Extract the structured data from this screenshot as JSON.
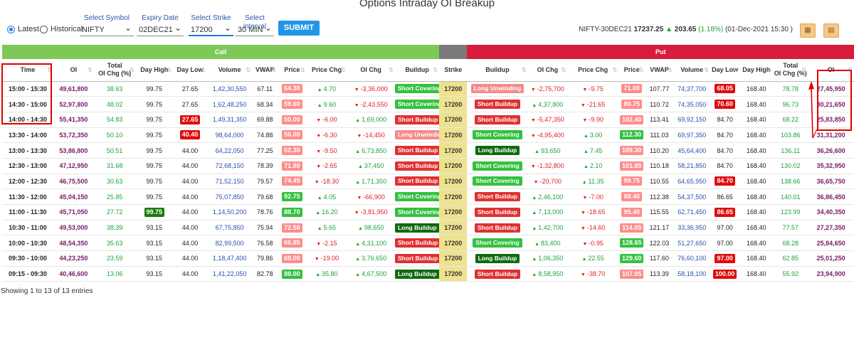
{
  "title": "Options Intraday OI Breakup",
  "controls": {
    "latest_label": "Latest",
    "historical_label": "Historical",
    "symbol_label": "Select Symbol",
    "symbol_value": "NIFTY",
    "expiry_label": "Expiry Date",
    "expiry_value": "02DEC21",
    "strike_label": "Select Strike",
    "strike_value": "17200",
    "interval_label": "Select interval",
    "interval_value": "30 MIN",
    "submit_label": "SUBMIT"
  },
  "info": {
    "contract": "NIFTY-30DEC21",
    "price": "17237.25",
    "change": "203.65",
    "change_pct": "(1.18%)",
    "timestamp": "(01-Dec-2021 15:30 )"
  },
  "icons": [
    "excel-icon",
    "pdf-icon"
  ],
  "colors": {
    "call_band": "#7dc857",
    "put_band": "#d91c3e",
    "strike_col": "#efe28f",
    "accent": "#2196e8"
  },
  "bands": {
    "call": "Call",
    "put": "Put"
  },
  "headers": {
    "time": "Time",
    "oi": "OI",
    "total_oi_chg": [
      "Total",
      "OI Chg (%)"
    ],
    "day_high": "Day High",
    "day_low": "Day Low",
    "volume": "Volume",
    "vwap": "VWAP",
    "price": "Price",
    "price_chg": "Price Chg",
    "oi_chg": "OI Chg",
    "buildup": "Buildup",
    "strike": "Strike"
  },
  "rows": [
    {
      "time": "15:00 - 15:30",
      "c_oi": "49,61,800",
      "c_toc": "38.63",
      "c_dh": "99.75",
      "c_dl": "27.65",
      "c_dl_s": "",
      "c_vol": "1,42,30,550",
      "c_vwap": "67.11",
      "c_price": "64.30",
      "c_price_s": "r",
      "c_pchg": "4.70",
      "c_pchg_d": "up",
      "c_oichg": "-3,36,000",
      "c_oichg_d": "dn",
      "c_bu": "Short Covering",
      "c_bu_s": "sc",
      "strike": "17200",
      "p_bu": "Long Unwinding",
      "p_bu_s": "lu",
      "p_oichg": "-2,75,700",
      "p_oichg_d": "dn",
      "p_pchg": "-9.75",
      "p_pchg_d": "dn",
      "p_price": "71.00",
      "p_price_s": "r",
      "p_vwap": "107.77",
      "p_vol": "74,37,700",
      "p_dl": "68.05",
      "p_dl_s": "dr",
      "p_dh": "168.40",
      "p_toc": "78.78",
      "p_oi": "27,45,950"
    },
    {
      "time": "14:30 - 15:00",
      "c_oi": "52,97,800",
      "c_toc": "48.02",
      "c_dh": "99.75",
      "c_dl": "27.65",
      "c_dl_s": "",
      "c_vol": "1,62,48,250",
      "c_vwap": "68.34",
      "c_price": "59.60",
      "c_price_s": "r",
      "c_pchg": "9.60",
      "c_pchg_d": "up",
      "c_oichg": "-2,43,550",
      "c_oichg_d": "dn",
      "c_bu": "Short Covering",
      "c_bu_s": "sc",
      "strike": "17200",
      "p_bu": "Short Buildup",
      "p_bu_s": "sb",
      "p_oichg": "4,37,800",
      "p_oichg_d": "up",
      "p_pchg": "-21.65",
      "p_pchg_d": "dn",
      "p_price": "80.75",
      "p_price_s": "r",
      "p_vwap": "110.72",
      "p_vol": "74,35,050",
      "p_dl": "70.60",
      "p_dl_s": "dr",
      "p_dh": "168.40",
      "p_toc": "96.73",
      "p_oi": "30,21,650"
    },
    {
      "time": "14:00 - 14:30",
      "c_oi": "55,41,350",
      "c_toc": "54.83",
      "c_dh": "99.75",
      "c_dl": "27.65",
      "c_dl_s": "dr",
      "c_vol": "1,49,31,350",
      "c_vwap": "69.88",
      "c_price": "50.00",
      "c_price_s": "r",
      "c_pchg": "-6.00",
      "c_pchg_d": "dn",
      "c_oichg": "1,69,000",
      "c_oichg_d": "up",
      "c_bu": "Short Buildup",
      "c_bu_s": "sb",
      "strike": "17200",
      "p_bu": "Short Buildup",
      "p_bu_s": "sb",
      "p_oichg": "-5,47,350",
      "p_oichg_d": "dn",
      "p_pchg": "-9.90",
      "p_pchg_d": "dn",
      "p_price": "102.40",
      "p_price_s": "r",
      "p_vwap": "113.41",
      "p_vol": "69,92,150",
      "p_dl": "84.70",
      "p_dl_s": "",
      "p_dh": "168.40",
      "p_toc": "68.22",
      "p_oi": "25,83,850"
    },
    {
      "time": "13:30 - 14:00",
      "c_oi": "53,72,350",
      "c_toc": "50.10",
      "c_dh": "99.75",
      "c_dl": "40.40",
      "c_dl_s": "dr",
      "c_vol": "98,64,000",
      "c_vwap": "74.88",
      "c_price": "56.00",
      "c_price_s": "r",
      "c_pchg": "-6.30",
      "c_pchg_d": "dn",
      "c_oichg": "-14,450",
      "c_oichg_d": "dn",
      "c_bu": "Long Unwinding",
      "c_bu_s": "lu",
      "strike": "17200",
      "p_bu": "Short Covering",
      "p_bu_s": "sc",
      "p_oichg": "-4,95,400",
      "p_oichg_d": "dn",
      "p_pchg": "3.00",
      "p_pchg_d": "up",
      "p_price": "112.30",
      "p_price_s": "g",
      "p_vwap": "111.03",
      "p_vol": "69,97,350",
      "p_dl": "84.70",
      "p_dl_s": "",
      "p_dh": "168.40",
      "p_toc": "103.86",
      "p_oi": "31,31,200"
    },
    {
      "time": "13:00 - 13:30",
      "c_oi": "53,86,800",
      "c_toc": "50.51",
      "c_dh": "99.75",
      "c_dl": "44.00",
      "c_dl_s": "",
      "c_vol": "64,22,050",
      "c_vwap": "77.25",
      "c_price": "62.30",
      "c_price_s": "r",
      "c_pchg": "-9.50",
      "c_pchg_d": "dn",
      "c_oichg": "6,73,850",
      "c_oichg_d": "up",
      "c_bu": "Short Buildup",
      "c_bu_s": "sb",
      "strike": "17200",
      "p_bu": "Long Buildup",
      "p_bu_s": "lb",
      "p_oichg": "93,650",
      "p_oichg_d": "up",
      "p_pchg": "7.45",
      "p_pchg_d": "up",
      "p_price": "109.30",
      "p_price_s": "r",
      "p_vwap": "110.20",
      "p_vol": "45,64,400",
      "p_dl": "84.70",
      "p_dl_s": "",
      "p_dh": "168.40",
      "p_toc": "136.11",
      "p_oi": "36,26,600"
    },
    {
      "time": "12:30 - 13:00",
      "c_oi": "47,12,950",
      "c_toc": "31.68",
      "c_dh": "99.75",
      "c_dl": "44.00",
      "c_dl_s": "",
      "c_vol": "72,68,150",
      "c_vwap": "78.39",
      "c_price": "71.80",
      "c_price_s": "r",
      "c_pchg": "-2.65",
      "c_pchg_d": "dn",
      "c_oichg": "37,450",
      "c_oichg_d": "up",
      "c_bu": "Short Buildup",
      "c_bu_s": "sb",
      "strike": "17200",
      "p_bu": "Short Covering",
      "p_bu_s": "sc",
      "p_oichg": "-1,32,800",
      "p_oichg_d": "dn",
      "p_pchg": "2.10",
      "p_pchg_d": "up",
      "p_price": "101.85",
      "p_price_s": "r",
      "p_vwap": "110.18",
      "p_vol": "58,21,850",
      "p_dl": "84.70",
      "p_dl_s": "",
      "p_dh": "168.40",
      "p_toc": "130.02",
      "p_oi": "35,32,950"
    },
    {
      "time": "12:00 - 12:30",
      "c_oi": "46,75,500",
      "c_toc": "30.63",
      "c_dh": "99.75",
      "c_dl": "44.00",
      "c_dl_s": "",
      "c_vol": "71,52,150",
      "c_vwap": "79.57",
      "c_price": "74.45",
      "c_price_s": "r",
      "c_pchg": "-18.30",
      "c_pchg_d": "dn",
      "c_oichg": "1,71,350",
      "c_oichg_d": "up",
      "c_bu": "Short Buildup",
      "c_bu_s": "sb",
      "strike": "17200",
      "p_bu": "Short Covering",
      "p_bu_s": "sc",
      "p_oichg": "-20,700",
      "p_oichg_d": "dn",
      "p_pchg": "11.35",
      "p_pchg_d": "up",
      "p_price": "99.75",
      "p_price_s": "r",
      "p_vwap": "110.55",
      "p_vol": "64,65,950",
      "p_dl": "84.70",
      "p_dl_s": "dr",
      "p_dh": "168.40",
      "p_toc": "138.66",
      "p_oi": "36,65,750"
    },
    {
      "time": "11:30 - 12:00",
      "c_oi": "45,04,150",
      "c_toc": "25.85",
      "c_dh": "99.75",
      "c_dl": "44.00",
      "c_dl_s": "",
      "c_vol": "75,07,850",
      "c_vwap": "79.68",
      "c_price": "92.75",
      "c_price_s": "g",
      "c_pchg": "4.05",
      "c_pchg_d": "up",
      "c_oichg": "-66,900",
      "c_oichg_d": "dn",
      "c_bu": "Short Covering",
      "c_bu_s": "sc",
      "strike": "17200",
      "p_bu": "Short Buildup",
      "p_bu_s": "sb",
      "p_oichg": "2,46,100",
      "p_oichg_d": "up",
      "p_pchg": "-7.00",
      "p_pchg_d": "dn",
      "p_price": "88.40",
      "p_price_s": "r",
      "p_vwap": "112.38",
      "p_vol": "54,37,500",
      "p_dl": "86.65",
      "p_dl_s": "",
      "p_dh": "168.40",
      "p_toc": "140.01",
      "p_oi": "36,86,450"
    },
    {
      "time": "11:00 - 11:30",
      "c_oi": "45,71,050",
      "c_toc": "27.72",
      "c_dh": "99.75",
      "c_dh_s": "dg",
      "c_dl": "44.00",
      "c_dl_s": "",
      "c_vol": "1,14,50,200",
      "c_vwap": "78.76",
      "c_price": "88.70",
      "c_price_s": "g",
      "c_pchg": "16.20",
      "c_pchg_d": "up",
      "c_oichg": "-3,81,950",
      "c_oichg_d": "dn",
      "c_bu": "Short Covering",
      "c_bu_s": "sc",
      "strike": "17200",
      "p_bu": "Short Buildup",
      "p_bu_s": "sb",
      "p_oichg": "7,13,000",
      "p_oichg_d": "up",
      "p_pchg": "-18.65",
      "p_pchg_d": "dn",
      "p_price": "95.40",
      "p_price_s": "r",
      "p_vwap": "115.55",
      "p_vol": "62,71,450",
      "p_dl": "86.65",
      "p_dl_s": "dr",
      "p_dh": "168.40",
      "p_toc": "123.99",
      "p_oi": "34,40,350"
    },
    {
      "time": "10:30 - 11:00",
      "c_oi": "49,53,000",
      "c_toc": "38.39",
      "c_dh": "93.15",
      "c_dl": "44.00",
      "c_dl_s": "",
      "c_vol": "67,75,850",
      "c_vwap": "75.94",
      "c_price": "72.50",
      "c_price_s": "r",
      "c_pchg": "5.65",
      "c_pchg_d": "up",
      "c_oichg": "98,650",
      "c_oichg_d": "up",
      "c_bu": "Long Buildup",
      "c_bu_s": "lb",
      "strike": "17200",
      "p_bu": "Short Buildup",
      "p_bu_s": "sb",
      "p_oichg": "1,42,700",
      "p_oichg_d": "up",
      "p_pchg": "-14.60",
      "p_pchg_d": "dn",
      "p_price": "114.05",
      "p_price_s": "r",
      "p_vwap": "121.17",
      "p_vol": "33,36,950",
      "p_dl": "97.00",
      "p_dl_s": "",
      "p_dh": "168.40",
      "p_toc": "77.57",
      "p_oi": "27,27,350"
    },
    {
      "time": "10:00 - 10:30",
      "c_oi": "48,54,350",
      "c_toc": "35.63",
      "c_dh": "93.15",
      "c_dl": "44.00",
      "c_dl_s": "",
      "c_vol": "82,99,500",
      "c_vwap": "76.58",
      "c_price": "66.85",
      "c_price_s": "r",
      "c_pchg": "-2.15",
      "c_pchg_d": "dn",
      "c_oichg": "4,31,100",
      "c_oichg_d": "up",
      "c_bu": "Short Buildup",
      "c_bu_s": "sb",
      "strike": "17200",
      "p_bu": "Short Covering",
      "p_bu_s": "sc",
      "p_oichg": "83,400",
      "p_oichg_d": "up",
      "p_pchg": "-0.95",
      "p_pchg_d": "dn",
      "p_price": "128.65",
      "p_price_s": "g",
      "p_vwap": "122.03",
      "p_vol": "51,27,650",
      "p_dl": "97.00",
      "p_dl_s": "",
      "p_dh": "168.40",
      "p_toc": "68.28",
      "p_oi": "25,84,650"
    },
    {
      "time": "09:30 - 10:00",
      "c_oi": "44,23,250",
      "c_toc": "23.59",
      "c_dh": "93.15",
      "c_dl": "44.00",
      "c_dl_s": "",
      "c_vol": "1,18,47,400",
      "c_vwap": "79.86",
      "c_price": "69.00",
      "c_price_s": "r",
      "c_pchg": "-19.00",
      "c_pchg_d": "dn",
      "c_oichg": "3,76,650",
      "c_oichg_d": "up",
      "c_bu": "Short Buildup",
      "c_bu_s": "sb",
      "strike": "17200",
      "p_bu": "Long Buildup",
      "p_bu_s": "lb",
      "p_oichg": "1,06,350",
      "p_oichg_d": "up",
      "p_pchg": "22.55",
      "p_pchg_d": "up",
      "p_price": "129.60",
      "p_price_s": "g",
      "p_vwap": "117.60",
      "p_vol": "76,60,100",
      "p_dl": "97.00",
      "p_dl_s": "dr",
      "p_dh": "168.40",
      "p_toc": "62.85",
      "p_oi": "25,01,250"
    },
    {
      "time": "09:15 - 09:30",
      "c_oi": "40,46,600",
      "c_toc": "13.06",
      "c_dh": "93.15",
      "c_dl": "44.00",
      "c_dl_s": "",
      "c_vol": "1,41,22,050",
      "c_vwap": "82.78",
      "c_price": "88.00",
      "c_price_s": "g",
      "c_pchg": "35.80",
      "c_pchg_d": "up",
      "c_oichg": "4,67,500",
      "c_oichg_d": "up",
      "c_bu": "Long Buildup",
      "c_bu_s": "lb",
      "strike": "17200",
      "p_bu": "Short Buildup",
      "p_bu_s": "sb",
      "p_oichg": "8,58,950",
      "p_oichg_d": "up",
      "p_pchg": "-38.70",
      "p_pchg_d": "dn",
      "p_price": "107.05",
      "p_price_s": "r",
      "p_vwap": "113.39",
      "p_vol": "58,18,100",
      "p_dl": "100.00",
      "p_dl_s": "dr",
      "p_dh": "168.40",
      "p_toc": "55.92",
      "p_oi": "23,94,900"
    }
  ],
  "footer": "Showing 1 to 13 of 13 entries"
}
